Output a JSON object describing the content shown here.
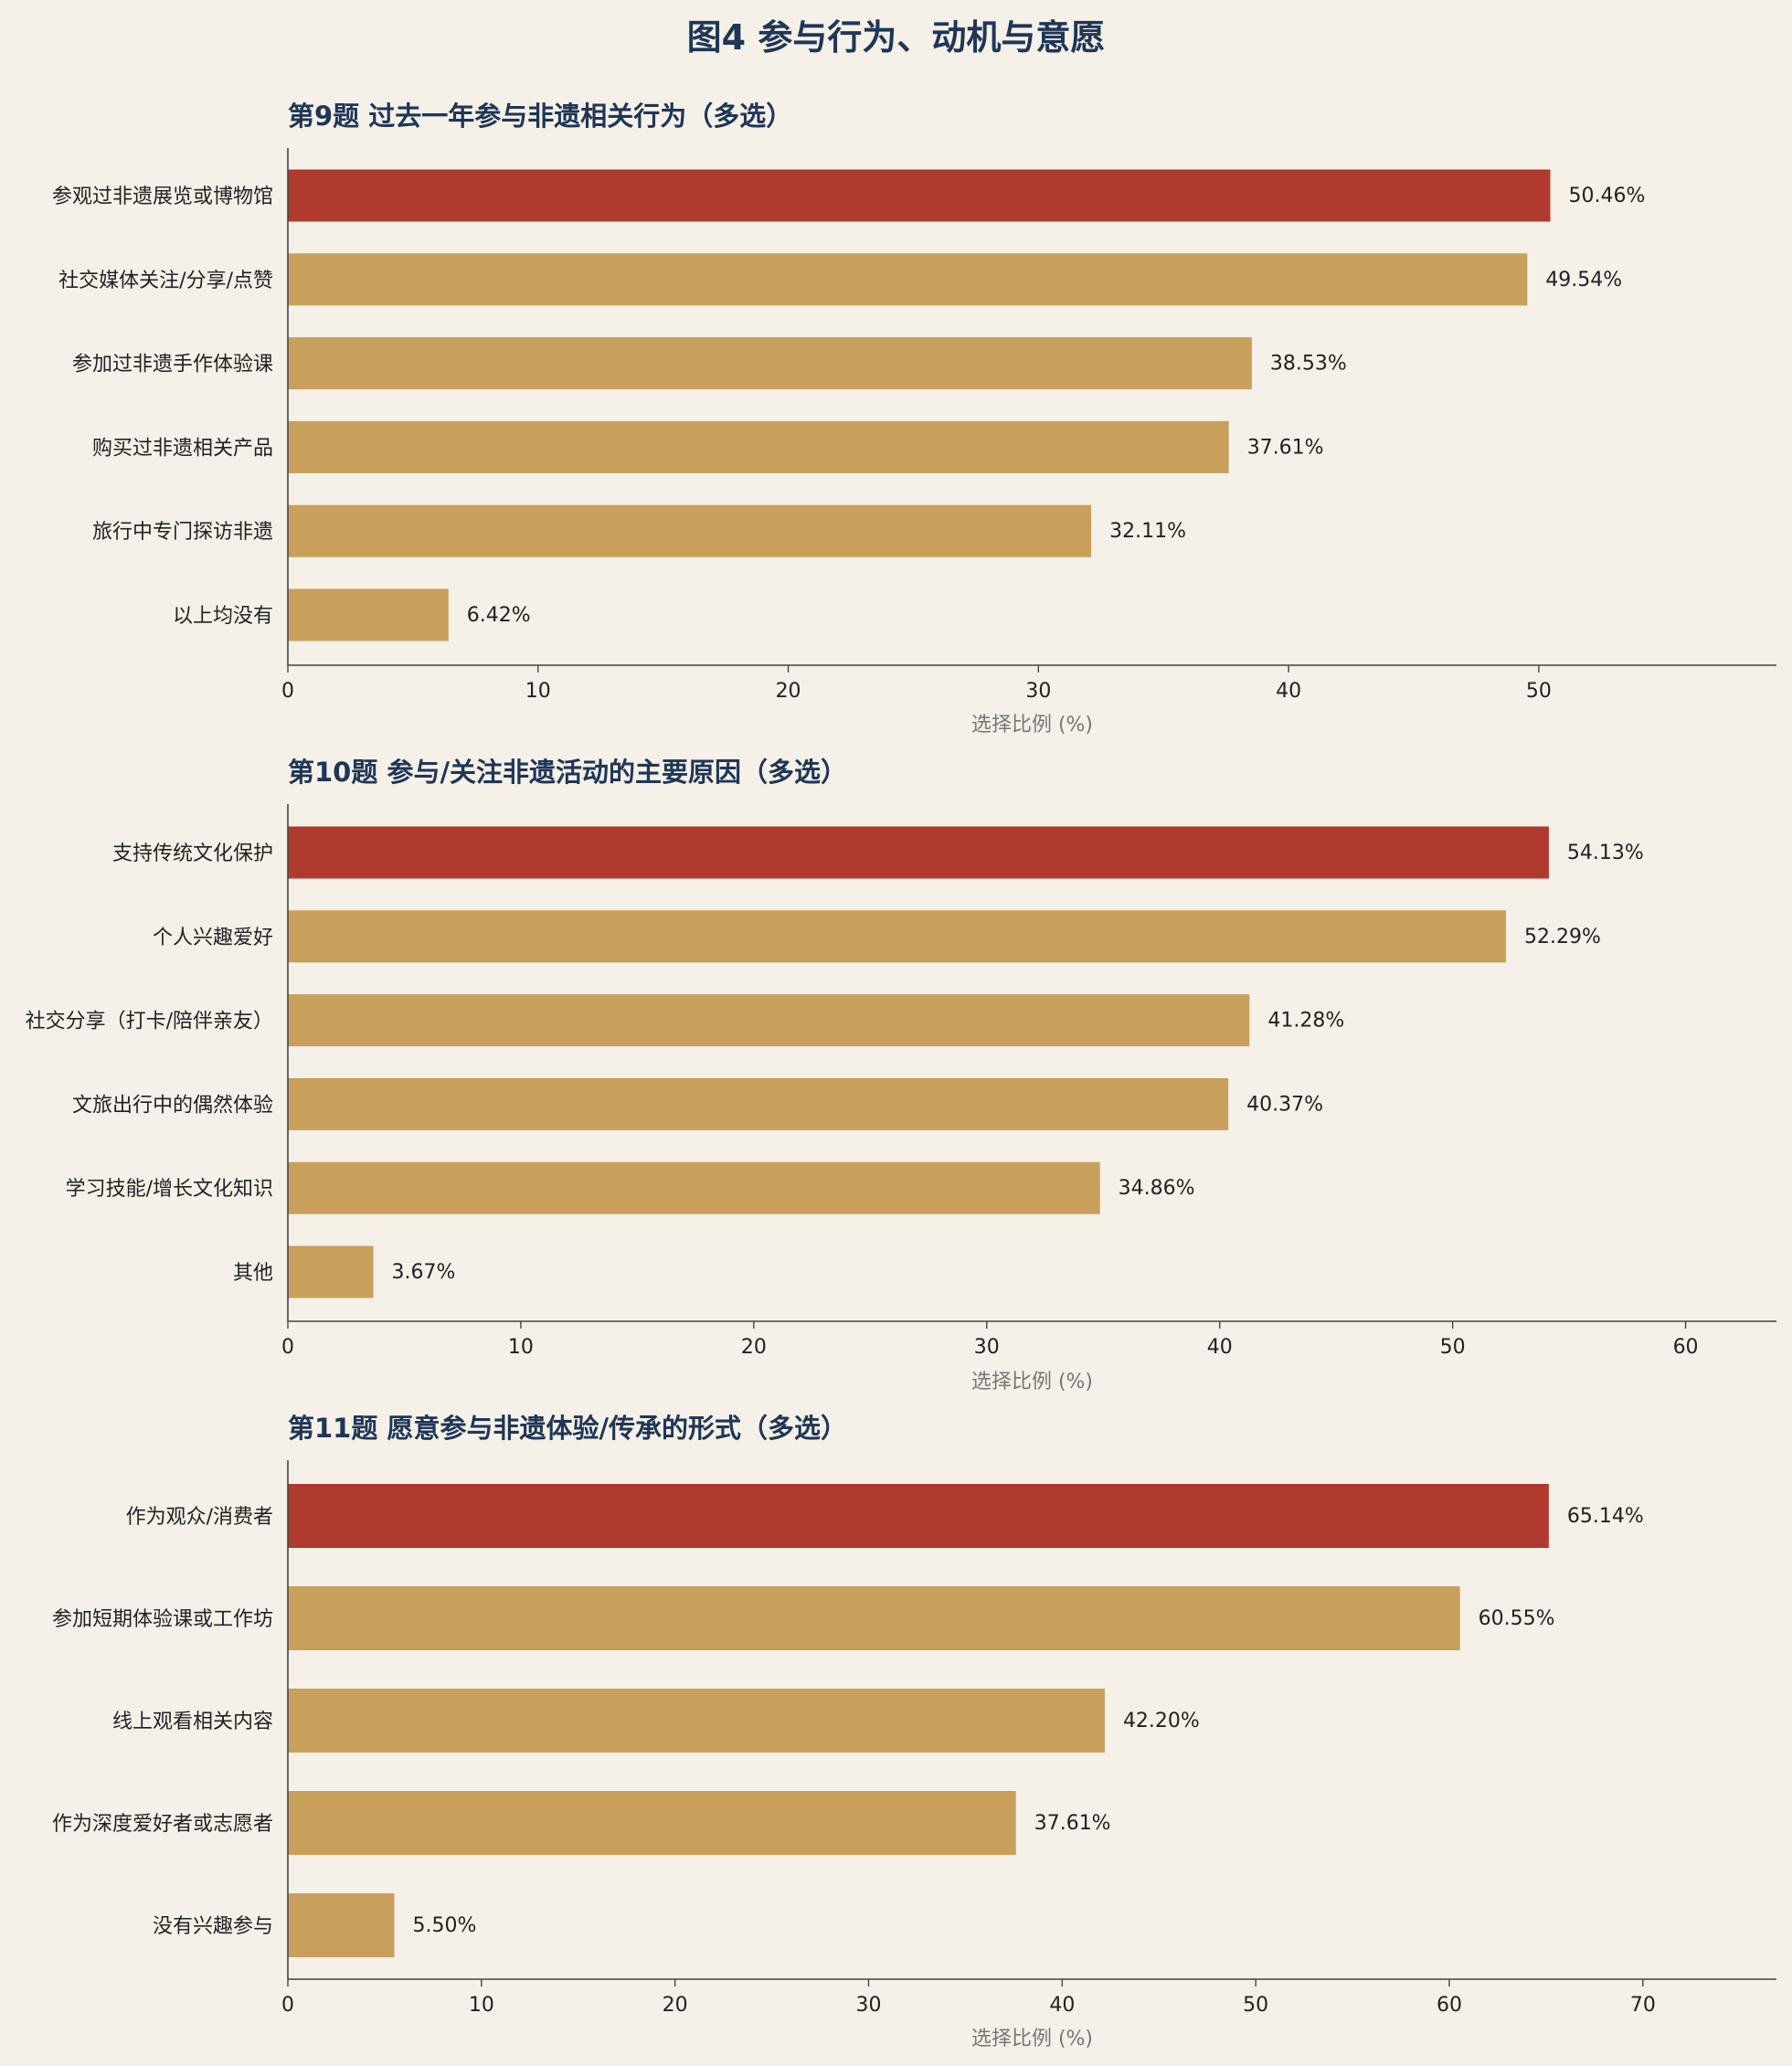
{
  "figure": {
    "title": "图4 参与行为、动机与意愿"
  },
  "colors": {
    "highlight": "#b03a2e",
    "bar": "#c8a05c",
    "axis": "#444444",
    "title": "#1f3657",
    "background": "#f5f1e8"
  },
  "chart_data": [
    {
      "type": "bar",
      "orientation": "horizontal",
      "title": "第9题 过去一年参与非遗相关行为（多选）",
      "xlabel": "选择比例 (%)",
      "xlim": [
        0,
        59.5
      ],
      "xticks": [
        0,
        10,
        20,
        30,
        40,
        50
      ],
      "categories": [
        "参观过非遗展览或博物馆",
        "社交媒体关注/分享/点赞",
        "参加过非遗手作体验课",
        "购买过非遗相关产品",
        "旅行中专门探访非遗",
        "以上均没有"
      ],
      "values": [
        50.46,
        49.54,
        38.53,
        37.61,
        32.11,
        6.42
      ],
      "labels": [
        "50.46%",
        "49.54%",
        "38.53%",
        "37.61%",
        "32.11%",
        "6.42%"
      ],
      "highlight_index": 0
    },
    {
      "type": "bar",
      "orientation": "horizontal",
      "title": "第10题 参与/关注非遗活动的主要原因（多选）",
      "xlabel": "选择比例 (%)",
      "xlim": [
        0,
        63.9
      ],
      "xticks": [
        0,
        10,
        20,
        30,
        40,
        50,
        60
      ],
      "categories": [
        "支持传统文化保护",
        "个人兴趣爱好",
        "社交分享（打卡/陪伴亲友）",
        "文旅出行中的偶然体验",
        "学习技能/增长文化知识",
        "其他"
      ],
      "values": [
        54.13,
        52.29,
        41.28,
        40.37,
        34.86,
        3.67
      ],
      "labels": [
        "54.13%",
        "52.29%",
        "41.28%",
        "40.37%",
        "34.86%",
        "3.67%"
      ],
      "highlight_index": 0
    },
    {
      "type": "bar",
      "orientation": "horizontal",
      "title": "第11题 愿意参与非遗体验/传承的形式（多选）",
      "xlabel": "选择比例 (%)",
      "xlim": [
        0,
        76.9
      ],
      "xticks": [
        0,
        10,
        20,
        30,
        40,
        50,
        60,
        70
      ],
      "categories": [
        "作为观众/消费者",
        "参加短期体验课或工作坊",
        "线上观看相关内容",
        "作为深度爱好者或志愿者",
        "没有兴趣参与"
      ],
      "values": [
        65.14,
        60.55,
        42.2,
        37.61,
        5.5
      ],
      "labels": [
        "65.14%",
        "60.55%",
        "42.20%",
        "37.61%",
        "5.50%"
      ],
      "highlight_index": 0
    }
  ]
}
